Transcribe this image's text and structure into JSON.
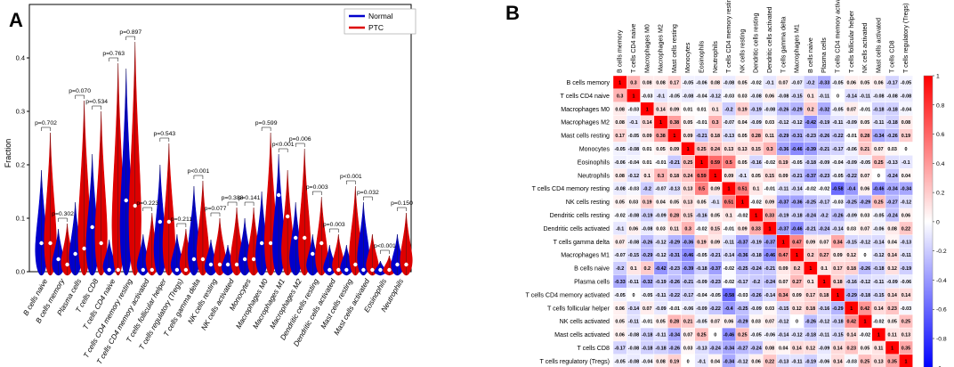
{
  "panels": {
    "a": "A",
    "b": "B"
  },
  "chart_data": [
    {
      "type": "violin",
      "title": "",
      "xlabel": "",
      "ylabel": "Fraction",
      "ylim": [
        0,
        0.46
      ],
      "yticks": [
        "0.0",
        "0.1",
        "0.2",
        "0.3",
        "0.4"
      ],
      "legend": [
        "Normal",
        "PTC"
      ],
      "legend_position": "top-right",
      "colors": {
        "Normal": "#0000cc",
        "PTC": "#dd0000"
      },
      "categories": [
        "B cells naive",
        "B cells memory",
        "Plasma cells",
        "T cells CD8",
        "T cells CD4 naive",
        "T cells CD4 memory resting",
        "T cells CD4 memory activated",
        "T cells follicular helper",
        "T cells regulatory (Tregs)",
        "T cells gamma delta",
        "NK cells resting",
        "NK cells activated",
        "Monocytes",
        "Macrophages M0",
        "Macrophages M1",
        "Macrophages M2",
        "Dendritic cells resting",
        "Dendritic cells activated",
        "Mast cells resting",
        "Mast cells activated",
        "Eosinophils",
        "Neutrophils"
      ],
      "pvalues": [
        "p=0.702",
        "p=0.302",
        "p=0.070",
        "p=0.534",
        "p=0.763",
        "p=0.897",
        "p=0.223",
        "p=0.543",
        "p=0.211",
        "p<0.001",
        "p=0.077",
        "p=0.388",
        "p=0.141",
        "p=0.599",
        "p<0.001",
        "p=0.006",
        "p=0.003",
        "p=0.003",
        "p<0.001",
        "p=0.032",
        "p<0.001",
        "p=0.150"
      ],
      "series": [
        {
          "name": "Normal",
          "max": [
            0.19,
            0.08,
            0.13,
            0.22,
            0.06,
            0.38,
            0.07,
            0.2,
            0.07,
            0.16,
            0.06,
            0.05,
            0.1,
            0.15,
            0.22,
            0.13,
            0.07,
            0.05,
            0.05,
            0.13,
            0.02,
            0.07
          ],
          "median": [
            0.05,
            0.02,
            0.03,
            0.08,
            0.0,
            0.13,
            0.0,
            0.09,
            0.0,
            0.02,
            0.01,
            0.01,
            0.02,
            0.05,
            0.14,
            0.06,
            0.03,
            0.0,
            0.0,
            0.0,
            0.0,
            0.01
          ]
        },
        {
          "name": "PTC",
          "max": [
            0.26,
            0.09,
            0.32,
            0.3,
            0.39,
            0.43,
            0.11,
            0.24,
            0.08,
            0.17,
            0.1,
            0.12,
            0.12,
            0.26,
            0.19,
            0.23,
            0.14,
            0.07,
            0.16,
            0.07,
            0.03,
            0.11
          ],
          "median": [
            0.05,
            0.01,
            0.04,
            0.05,
            0.0,
            0.12,
            0.0,
            0.09,
            0.0,
            0.02,
            0.01,
            0.01,
            0.02,
            0.05,
            0.1,
            0.06,
            0.05,
            0.0,
            0.01,
            0.0,
            0.0,
            0.01
          ]
        }
      ]
    },
    {
      "type": "heatmap",
      "labels": [
        "B cells memory",
        "T cells CD4 naive",
        "Macrophages M0",
        "Macrophages M2",
        "Mast cells resting",
        "Monocytes",
        "Eosinophils",
        "Neutrophils",
        "T cells CD4 memory resting",
        "NK cells resting",
        "Dendritic cells resting",
        "Dendritic cells activated",
        "T cells gamma delta",
        "Macrophages M1",
        "B cells naive",
        "Plasma cells",
        "T cells CD4 memory activated",
        "T cells follicular helper",
        "NK cells activated",
        "Mast cells activated",
        "T cells CD8",
        "T cells regulatory (Tregs)"
      ],
      "matrix": [
        [
          "1",
          "0.3",
          "0.08",
          "0.08",
          "0.17",
          "-0.05",
          "-0.06",
          "0.08",
          "-0.08",
          "0.05",
          "-0.02",
          "-0.1",
          "0.07",
          "-0.07",
          "-0.2",
          "-0.33",
          "-0.05",
          "0.06",
          "0.05",
          "0.06",
          "-0.17",
          "-0.05"
        ],
        [
          "0.3",
          "1",
          "-0.03",
          "-0.1",
          "-0.05",
          "-0.08",
          "-0.04",
          "-0.12",
          "-0.03",
          "0.03",
          "-0.08",
          "0.06",
          "-0.08",
          "-0.15",
          "0.1",
          "-0.11",
          "0",
          "-0.14",
          "-0.11",
          "-0.08",
          "-0.08",
          "-0.08"
        ],
        [
          "0.08",
          "-0.03",
          "1",
          "0.14",
          "0.09",
          "0.01",
          "0.01",
          "0.1",
          "-0.2",
          "0.19",
          "-0.19",
          "-0.08",
          "-0.26",
          "-0.29",
          "0.2",
          "-0.32",
          "-0.05",
          "0.07",
          "-0.01",
          "-0.18",
          "-0.18",
          "-0.04"
        ],
        [
          "0.08",
          "-0.1",
          "0.14",
          "1",
          "0.38",
          "0.05",
          "-0.01",
          "0.3",
          "-0.07",
          "0.04",
          "-0.09",
          "0.03",
          "-0.12",
          "-0.12",
          "-0.42",
          "-0.19",
          "-0.11",
          "-0.09",
          "0.05",
          "-0.11",
          "-0.18",
          "0.08"
        ],
        [
          "0.17",
          "-0.05",
          "0.09",
          "0.38",
          "1",
          "0.09",
          "-0.21",
          "0.18",
          "-0.13",
          "0.05",
          "0.28",
          "0.11",
          "-0.29",
          "-0.31",
          "-0.23",
          "-0.26",
          "-0.22",
          "-0.01",
          "0.28",
          "-0.34",
          "-0.26",
          "0.19"
        ],
        [
          "-0.05",
          "-0.08",
          "0.01",
          "0.05",
          "0.09",
          "1",
          "0.25",
          "0.24",
          "0.13",
          "0.13",
          "0.15",
          "0.3",
          "-0.36",
          "-0.46",
          "-0.39",
          "-0.21",
          "-0.17",
          "-0.06",
          "0.21",
          "0.07",
          "0.03",
          "0"
        ],
        [
          "-0.06",
          "-0.04",
          "0.01",
          "-0.01",
          "-0.21",
          "0.25",
          "1",
          "0.59",
          "0.5",
          "0.05",
          "-0.16",
          "-0.02",
          "0.19",
          "-0.05",
          "-0.18",
          "-0.09",
          "-0.04",
          "-0.09",
          "-0.05",
          "0.25",
          "-0.13",
          "-0.1"
        ],
        [
          "0.08",
          "-0.12",
          "0.1",
          "0.3",
          "0.18",
          "0.24",
          "0.59",
          "1",
          "0.09",
          "-0.1",
          "0.05",
          "0.15",
          "0.09",
          "-0.21",
          "-0.37",
          "-0.23",
          "-0.05",
          "-0.22",
          "0.07",
          "0",
          "-0.24",
          "0.04"
        ],
        [
          "-0.08",
          "-0.03",
          "-0.2",
          "-0.07",
          "-0.13",
          "0.13",
          "0.5",
          "0.09",
          "1",
          "0.51",
          "0.1",
          "-0.01",
          "-0.11",
          "-0.14",
          "-0.02",
          "-0.02",
          "-0.58",
          "-0.4",
          "0.06",
          "-0.46",
          "-0.34",
          "-0.34"
        ],
        [
          "0.05",
          "0.03",
          "0.19",
          "0.04",
          "0.05",
          "0.13",
          "0.05",
          "-0.1",
          "0.51",
          "1",
          "-0.02",
          "0.09",
          "-0.37",
          "-0.36",
          "-0.25",
          "-0.17",
          "-0.03",
          "-0.25",
          "-0.29",
          "0.25",
          "-0.27",
          "-0.12"
        ],
        [
          "-0.02",
          "-0.08",
          "-0.19",
          "-0.09",
          "0.28",
          "0.15",
          "-0.16",
          "0.05",
          "0.1",
          "-0.02",
          "1",
          "0.33",
          "-0.19",
          "-0.18",
          "-0.24",
          "-0.2",
          "-0.26",
          "-0.09",
          "0.03",
          "-0.05",
          "-0.24",
          "0.06"
        ],
        [
          "-0.1",
          "0.06",
          "-0.08",
          "0.03",
          "0.11",
          "0.3",
          "-0.02",
          "0.15",
          "-0.01",
          "0.09",
          "0.33",
          "1",
          "-0.37",
          "-0.46",
          "-0.21",
          "-0.24",
          "-0.14",
          "0.03",
          "0.07",
          "-0.06",
          "0.08",
          "0.22"
        ],
        [
          "0.07",
          "-0.08",
          "-0.26",
          "-0.12",
          "-0.29",
          "-0.36",
          "0.19",
          "0.09",
          "-0.11",
          "-0.37",
          "-0.19",
          "-0.37",
          "1",
          "0.47",
          "0.09",
          "0.07",
          "0.34",
          "-0.15",
          "-0.12",
          "-0.14",
          "0.04",
          "-0.13"
        ],
        [
          "-0.07",
          "-0.15",
          "-0.29",
          "-0.12",
          "-0.31",
          "-0.46",
          "-0.05",
          "-0.21",
          "-0.14",
          "-0.36",
          "-0.18",
          "-0.46",
          "0.47",
          "1",
          "0.2",
          "0.27",
          "0.09",
          "0.12",
          "0",
          "-0.12",
          "0.14",
          "-0.11"
        ],
        [
          "-0.2",
          "0.1",
          "0.2",
          "-0.42",
          "-0.23",
          "-0.39",
          "-0.18",
          "-0.37",
          "-0.02",
          "-0.25",
          "-0.24",
          "-0.21",
          "0.09",
          "0.2",
          "1",
          "0.1",
          "0.17",
          "0.18",
          "-0.26",
          "-0.18",
          "0.12",
          "-0.19"
        ],
        [
          "-0.33",
          "-0.11",
          "-0.32",
          "-0.19",
          "-0.26",
          "-0.21",
          "-0.09",
          "-0.23",
          "-0.02",
          "-0.17",
          "-0.2",
          "-0.24",
          "0.07",
          "0.27",
          "0.1",
          "1",
          "0.18",
          "-0.16",
          "-0.12",
          "-0.11",
          "-0.09",
          "-0.06"
        ],
        [
          "-0.05",
          "0",
          "-0.05",
          "-0.11",
          "-0.22",
          "-0.17",
          "-0.04",
          "-0.05",
          "-0.58",
          "-0.03",
          "-0.26",
          "-0.14",
          "0.34",
          "0.09",
          "0.17",
          "0.18",
          "1",
          "-0.29",
          "-0.18",
          "-0.15",
          "0.14",
          "0.14"
        ],
        [
          "0.06",
          "-0.14",
          "0.07",
          "-0.09",
          "-0.01",
          "-0.06",
          "-0.09",
          "-0.22",
          "-0.4",
          "-0.25",
          "-0.09",
          "0.03",
          "-0.15",
          "0.12",
          "0.18",
          "-0.16",
          "-0.29",
          "1",
          "0.42",
          "0.14",
          "0.23",
          "-0.03"
        ],
        [
          "0.05",
          "-0.11",
          "-0.01",
          "0.05",
          "0.28",
          "0.21",
          "-0.05",
          "0.07",
          "0.06",
          "-0.29",
          "0.03",
          "0.07",
          "-0.12",
          "0",
          "-0.26",
          "-0.12",
          "-0.18",
          "0.42",
          "1",
          "-0.02",
          "0.05",
          "0.25"
        ],
        [
          "0.06",
          "-0.08",
          "-0.18",
          "-0.11",
          "-0.34",
          "0.07",
          "0.25",
          "0",
          "-0.46",
          "0.25",
          "-0.05",
          "-0.06",
          "-0.14",
          "-0.12",
          "-0.18",
          "-0.11",
          "-0.15",
          "0.14",
          "-0.02",
          "1",
          "0.11",
          "0.13"
        ],
        [
          "-0.17",
          "-0.08",
          "-0.18",
          "-0.18",
          "-0.26",
          "0.03",
          "-0.13",
          "-0.24",
          "-0.34",
          "-0.27",
          "-0.24",
          "0.08",
          "0.04",
          "0.14",
          "0.12",
          "-0.09",
          "0.14",
          "0.23",
          "0.05",
          "0.11",
          "1",
          "0.35"
        ],
        [
          "-0.05",
          "-0.08",
          "-0.04",
          "0.08",
          "0.19",
          "0",
          "-0.1",
          "0.04",
          "-0.34",
          "-0.12",
          "0.06",
          "0.22",
          "-0.13",
          "-0.11",
          "-0.19",
          "-0.06",
          "0.14",
          "-0.03",
          "0.25",
          "0.13",
          "0.35",
          "1"
        ]
      ],
      "colorbar_ticks": [
        "1",
        "0.8",
        "0.6",
        "0.4",
        "0.2",
        "0",
        "-0.2",
        "-0.4",
        "-0.6",
        "-0.8",
        "-1"
      ],
      "colors": {
        "positive": "#ff0000",
        "neutral": "#ffffff",
        "negative": "#0000ff"
      }
    }
  ]
}
